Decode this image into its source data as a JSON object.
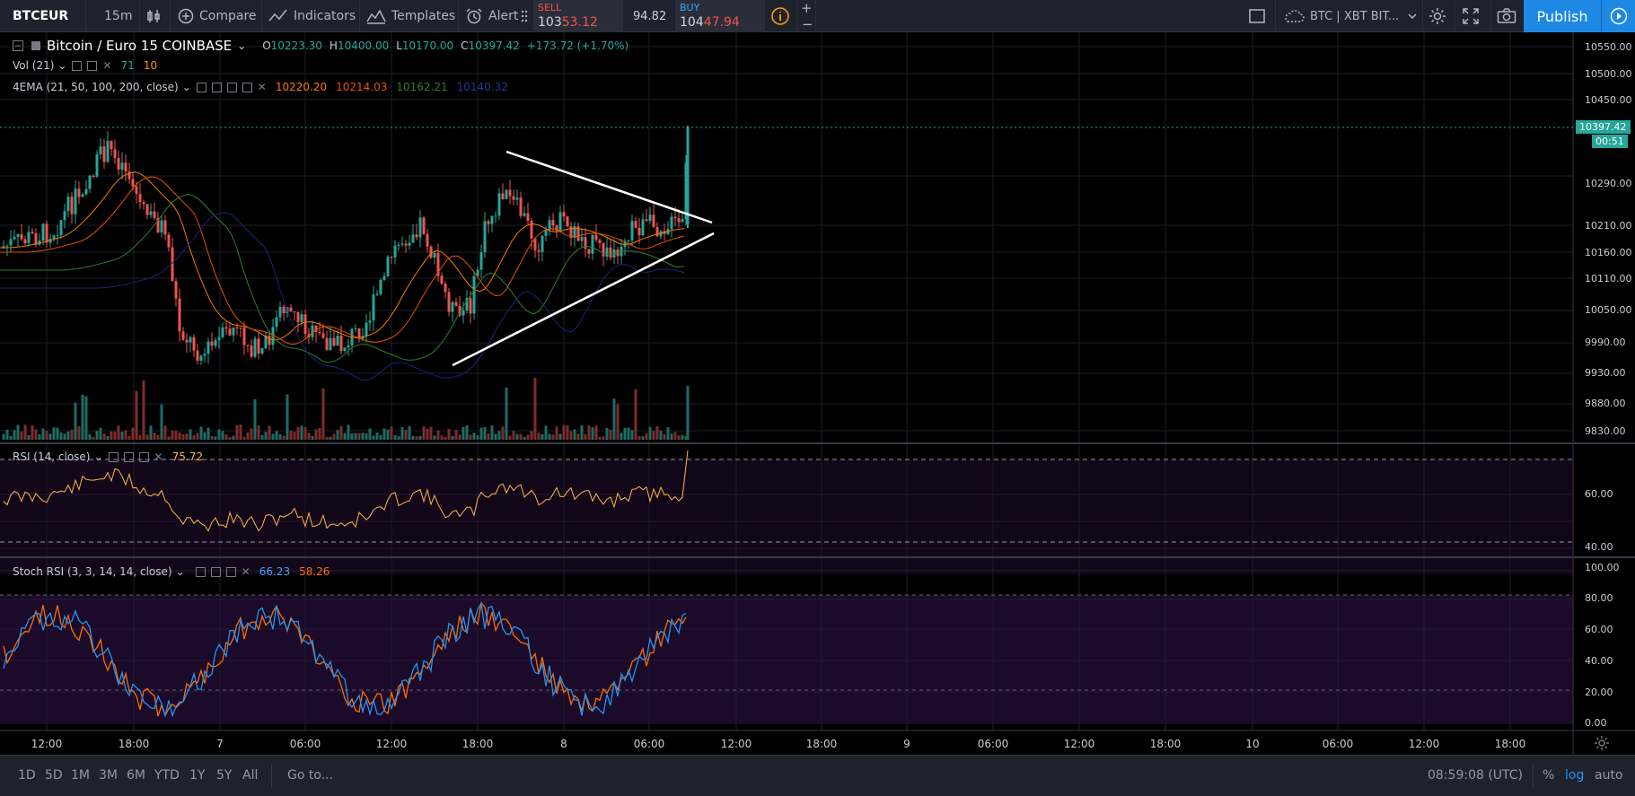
{
  "toolbar": {
    "symbol": "BTCEUR",
    "interval": "15m",
    "compare_label": "Compare",
    "indicators_label": "Indicators",
    "templates_label": "Templates",
    "alert_label": "Alert",
    "sell_label": "SELL",
    "sell_price": "10353.12",
    "spread": "94.82",
    "buy_label": "BUY",
    "buy_price": "10447.94",
    "layout_name": "BTC | XBT BIT...",
    "publish_label": "Publish"
  },
  "legend": {
    "title": "Bitcoin / Euro  15  COINBASE",
    "o_key": "O",
    "open": "10223.30",
    "h_key": "H",
    "high": "10400.00",
    "l_key": "L",
    "low": "10170.00",
    "c_key": "C",
    "close": "10397.42",
    "change": "+173.72 (+1.70%)",
    "vol_label": "Vol (21)",
    "vol_value1": "71",
    "vol_value2": "10",
    "ema_label": "4EMA (21, 50, 100, 200, close)",
    "ema21": "10220.20",
    "ema50": "10214.03",
    "ema100": "10162.21",
    "ema200": "10140.32",
    "rsi_label": "RSI (14, close)",
    "rsi_value": "75.72",
    "stoch_label": "Stoch RSI (3, 3, 14, 14, close)",
    "stoch_k": "66.23",
    "stoch_d": "58.26"
  },
  "price_axis": {
    "ticks": [
      "10550.00",
      "10500.00",
      "10450.00",
      "10397.42",
      "10290.00",
      "10210.00",
      "10160.00",
      "10110.00",
      "10050.00",
      "9990.00",
      "9930.00",
      "9880.00",
      "9830.00"
    ],
    "last_price": "10397.42",
    "countdown": "00:51"
  },
  "rsi_axis": {
    "ticks": [
      "60.00",
      "40.00"
    ]
  },
  "stoch_axis": {
    "ticks": [
      "100.00",
      "80.00",
      "60.00",
      "40.00",
      "20.00",
      "0.00"
    ]
  },
  "time_axis": {
    "ticks": [
      "12:00",
      "18:00",
      "7",
      "06:00",
      "12:00",
      "18:00",
      "8",
      "06:00",
      "12:00",
      "18:00",
      "9",
      "06:00",
      "12:00",
      "18:00",
      "10",
      "06:00",
      "12:00",
      "18:00"
    ]
  },
  "bottom": {
    "ranges": [
      "1D",
      "5D",
      "1M",
      "3M",
      "6M",
      "YTD",
      "1Y",
      "5Y",
      "All"
    ],
    "goto_label": "Go to...",
    "clock": "08:59:08 (UTC)",
    "pct_label": "%",
    "log_label": "log",
    "auto_label": "auto"
  },
  "colors": {
    "up": "#26a69a",
    "down": "#ef5350",
    "ema21": "#f57c00",
    "ema50": "#e65100",
    "ema100": "#2e7d32",
    "ema200": "#1a237e",
    "rsi": "#ffb74d",
    "stoch_k": "#2196f3",
    "stoch_d": "#ff6d00",
    "accent": "#1e88e5"
  },
  "chart_data": {
    "type": "candlestick",
    "last_ohlc": {
      "open": 10223.3,
      "high": 10400.0,
      "low": 10170.0,
      "close": 10397.42
    },
    "price_range": [
      9800,
      10570
    ],
    "rsi_last": 75.72,
    "stoch_last": {
      "k": 66.23,
      "d": 58.26
    }
  }
}
